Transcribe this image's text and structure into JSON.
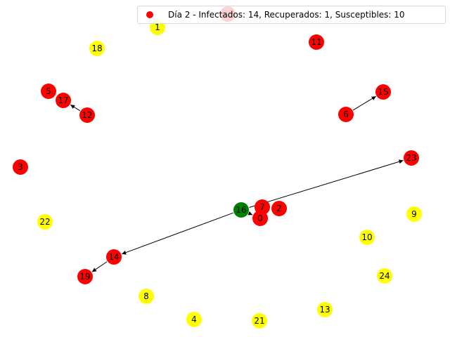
{
  "colors": {
    "infected": "#ff0000",
    "recovered": "#008000",
    "susceptible": "#ffff00",
    "edge": "#000000"
  },
  "legend": {
    "label": "Día 2 - Infectados: 14, Recuperados: 1, Susceptibles: 10",
    "marker_color": "#ff0000"
  },
  "nodes": [
    {
      "id": "0",
      "status": "infected"
    },
    {
      "id": "1",
      "status": "susceptible"
    },
    {
      "id": "2",
      "status": "infected"
    },
    {
      "id": "3",
      "status": "infected"
    },
    {
      "id": "4",
      "status": "susceptible"
    },
    {
      "id": "5",
      "status": "infected"
    },
    {
      "id": "6",
      "status": "infected"
    },
    {
      "id": "7",
      "status": "infected"
    },
    {
      "id": "8",
      "status": "susceptible"
    },
    {
      "id": "9",
      "status": "susceptible"
    },
    {
      "id": "10",
      "status": "susceptible"
    },
    {
      "id": "11",
      "status": "infected"
    },
    {
      "id": "12",
      "status": "infected"
    },
    {
      "id": "13",
      "status": "susceptible"
    },
    {
      "id": "14",
      "status": "infected"
    },
    {
      "id": "15",
      "status": "infected"
    },
    {
      "id": "16",
      "status": "recovered"
    },
    {
      "id": "17",
      "status": "infected"
    },
    {
      "id": "18",
      "status": "susceptible"
    },
    {
      "id": "19",
      "status": "infected"
    },
    {
      "id": "20",
      "status": "infected"
    },
    {
      "id": "21",
      "status": "susceptible"
    },
    {
      "id": "22",
      "status": "susceptible"
    },
    {
      "id": "23",
      "status": "infected"
    },
    {
      "id": "24",
      "status": "susceptible"
    }
  ],
  "edges": [
    {
      "from": "12",
      "to": "17"
    },
    {
      "from": "6",
      "to": "15"
    },
    {
      "from": "16",
      "to": "23"
    },
    {
      "from": "16",
      "to": "14"
    },
    {
      "from": "16",
      "to": "0"
    },
    {
      "from": "14",
      "to": "19"
    }
  ]
}
